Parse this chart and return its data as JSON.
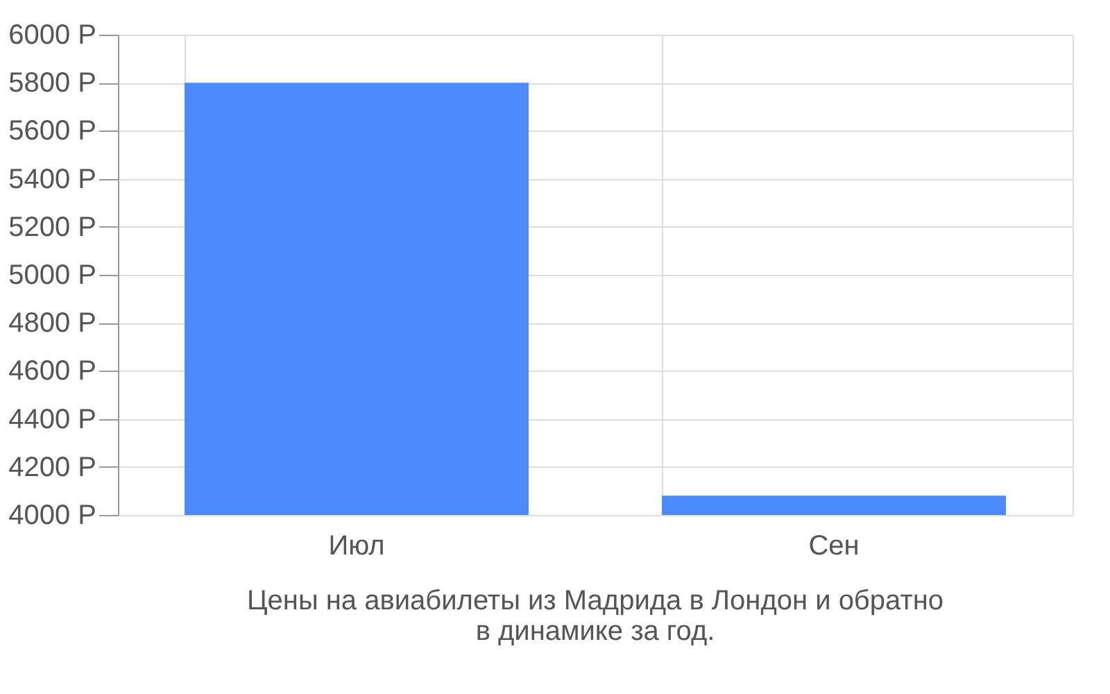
{
  "chart_data": {
    "type": "bar",
    "categories": [
      "Июл",
      "Сен"
    ],
    "values": [
      5800,
      4080
    ],
    "color": "#4c89fb",
    "ylim": [
      4000,
      6000
    ],
    "yticks": [
      {
        "value": 4000,
        "label": "4000 Р"
      },
      {
        "value": 4200,
        "label": "4200 Р"
      },
      {
        "value": 4400,
        "label": "4400 Р"
      },
      {
        "value": 4600,
        "label": "4600 Р"
      },
      {
        "value": 4800,
        "label": "4800 Р"
      },
      {
        "value": 5000,
        "label": "5000 Р"
      },
      {
        "value": 5200,
        "label": "5200 Р"
      },
      {
        "value": 5400,
        "label": "5400 Р"
      },
      {
        "value": 5600,
        "label": "5600 Р"
      },
      {
        "value": 5800,
        "label": "5800 Р"
      },
      {
        "value": 6000,
        "label": "6000 Р"
      }
    ],
    "grid": true,
    "annotations": [
      "Цены на авиабилеты из Мадрида в Лондон и обратно",
      "в динамике за год."
    ]
  }
}
